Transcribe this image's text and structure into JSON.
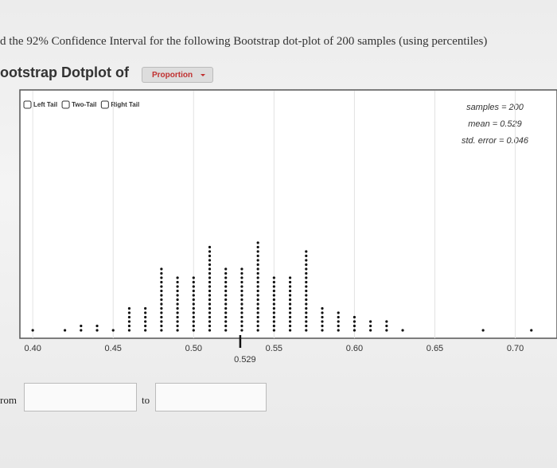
{
  "header": {
    "question": "d the 92% Confidence Interval for the following Bootstrap dot-plot of 200 samples (using percentiles)",
    "title": "ootstrap Dotplot of",
    "dropdown": "Proportion"
  },
  "controls": {
    "tails": [
      "Left Tail",
      "Two-Tail",
      "Right Tail"
    ]
  },
  "stats": [
    "samples = 200",
    "mean = 0.529",
    "std. error = 0.046"
  ],
  "chart_data": {
    "type": "dotplot",
    "x": [
      0.4,
      0.42,
      0.43,
      0.44,
      0.45,
      0.46,
      0.47,
      0.48,
      0.49,
      0.5,
      0.51,
      0.52,
      0.53,
      0.54,
      0.55,
      0.56,
      0.57,
      0.58,
      0.59,
      0.6,
      0.61,
      0.62,
      0.63,
      0.68,
      0.71
    ],
    "values": [
      1,
      1,
      2,
      2,
      1,
      6,
      6,
      15,
      13,
      13,
      20,
      15,
      15,
      21,
      13,
      13,
      19,
      6,
      5,
      4,
      3,
      3,
      1,
      1,
      1
    ],
    "color": "#111111",
    "xlim": [
      0.392,
      0.721
    ],
    "xticks": [
      {
        "value": 0.4,
        "label": "0.40"
      },
      {
        "value": 0.45,
        "label": "0.45"
      },
      {
        "value": 0.5,
        "label": "0.50"
      },
      {
        "value": 0.55,
        "label": "0.55"
      },
      {
        "value": 0.6,
        "label": "0.60"
      },
      {
        "value": 0.65,
        "label": "0.65"
      },
      {
        "value": 0.7,
        "label": "0.70"
      }
    ],
    "grid": true,
    "marker": 0.529
  },
  "range_inputs": {
    "from": "rom",
    "to": "to"
  }
}
